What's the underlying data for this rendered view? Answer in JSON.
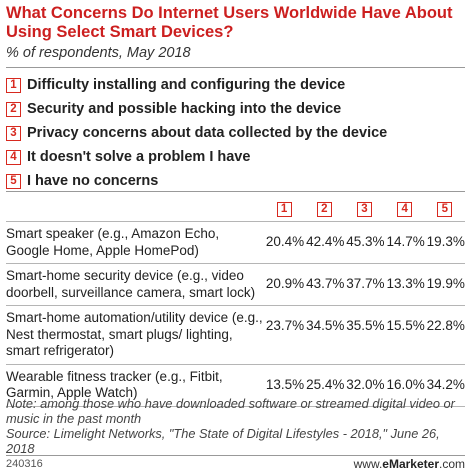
{
  "title": "What Concerns Do Internet Users Worldwide Have About Using Select Smart Devices?",
  "subtitle": "% of respondents, May 2018",
  "legend": [
    {
      "num": "1",
      "label": "Difficulty installing and configuring the device"
    },
    {
      "num": "2",
      "label": "Security and possible hacking into the device"
    },
    {
      "num": "3",
      "label": "Privacy concerns about data collected by the device"
    },
    {
      "num": "4",
      "label": "It doesn't solve a problem I have"
    },
    {
      "num": "5",
      "label": "I have no concerns"
    }
  ],
  "colors": {
    "title": "#cc1f1f",
    "accent": "#d7291f"
  },
  "chart_data": {
    "type": "table",
    "title": "What Concerns Do Internet Users Worldwide Have About Using Select Smart Devices?",
    "subtitle": "% of respondents, May 2018",
    "columns": [
      "1",
      "2",
      "3",
      "4",
      "5"
    ],
    "rows": [
      {
        "label": "Smart speaker (e.g., Amazon Echo, Google Home, Apple HomePod)",
        "values": [
          "20.4%",
          "42.4%",
          "45.3%",
          "14.7%",
          "19.3%"
        ]
      },
      {
        "label": "Smart-home security device (e.g., video doorbell, surveillance camera, smart lock)",
        "values": [
          "20.9%",
          "43.7%",
          "37.7%",
          "13.3%",
          "19.9%"
        ]
      },
      {
        "label": "Smart-home automation/utility device (e.g., Nest thermostat, smart plugs/ lighting, smart refrigerator)",
        "values": [
          "23.7%",
          "34.5%",
          "35.5%",
          "15.5%",
          "22.8%"
        ]
      },
      {
        "label": "Wearable fitness tracker (e.g., Fitbit, Garmin, Apple Watch)",
        "values": [
          "13.5%",
          "25.4%",
          "32.0%",
          "16.0%",
          "34.2%"
        ]
      }
    ]
  },
  "note": "Note: among those who have downloaded software or streamed digital video or music in the past month",
  "source": "Source: Limelight Networks, \"The State of Digital Lifestyles - 2018,\" June 26, 2018",
  "footer": {
    "id": "240316",
    "brand_prefix": "www.",
    "brand_name": "eMarketer",
    "brand_suffix": ".com"
  }
}
